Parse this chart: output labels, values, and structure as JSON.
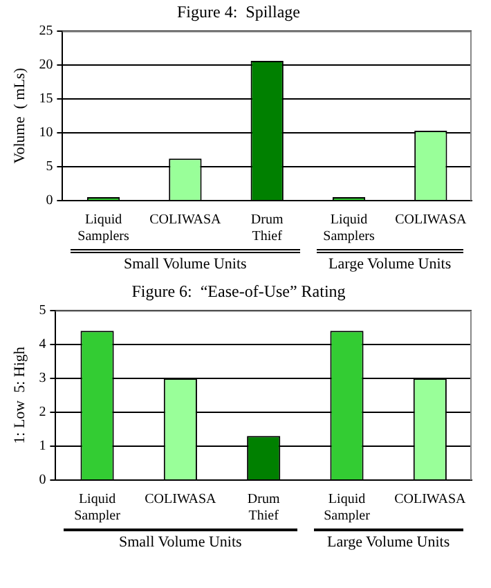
{
  "chart_data": [
    {
      "type": "bar",
      "title": "Figure 4:  Spillage",
      "ylabel": "Volume  ( mLs)",
      "categories": [
        "Liquid Samplers",
        "COLIWASA",
        "Drum Thief",
        "Liquid Samplers",
        "COLIWASA"
      ],
      "values": [
        0.5,
        6.2,
        20.6,
        0.5,
        10.3
      ],
      "colors": [
        "#33cc33",
        "#99ff99",
        "#008000",
        "#33cc33",
        "#99ff99"
      ],
      "ylim": [
        0,
        25
      ],
      "yticks": [
        0,
        5,
        10,
        15,
        20,
        25
      ],
      "grid": "y",
      "legend": false,
      "annotations": [
        "Small Volume Units",
        "Large Volume Units"
      ]
    },
    {
      "type": "bar",
      "title": "Figure 6:  “Ease-of-Use” Rating",
      "ylabel": "1: Low  5: High",
      "categories": [
        "Liquid Sampler",
        "COLIWASA",
        "Drum Thief",
        "Liquid Sampler",
        "COLIWASA"
      ],
      "values": [
        4.4,
        3.0,
        1.3,
        4.4,
        3.0
      ],
      "colors": [
        "#33cc33",
        "#99ff99",
        "#008000",
        "#33cc33",
        "#99ff99"
      ],
      "ylim": [
        0,
        5
      ],
      "yticks": [
        0,
        1,
        2,
        3,
        4,
        5
      ],
      "grid": "y",
      "legend": false,
      "annotations": [
        "Small Volume Units",
        "Large Volume Units"
      ]
    }
  ]
}
